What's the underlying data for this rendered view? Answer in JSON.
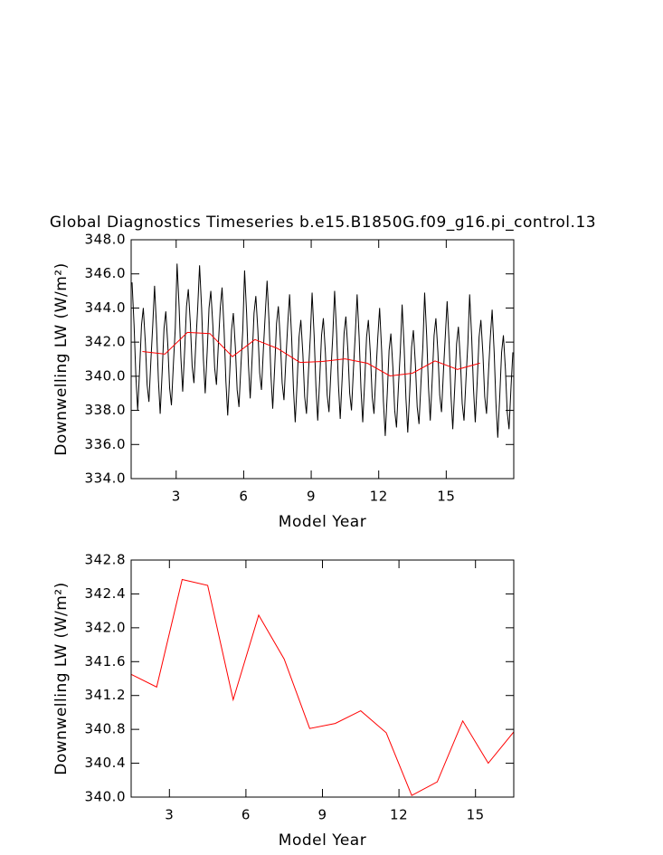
{
  "chart_data": [
    {
      "type": "line",
      "title": "Global Diagnostics Timeseries b.e15.B1850G.f09_g16.pi_control.13",
      "x_label": "Model Year",
      "y_label": "Downwelling LW (W/m²)",
      "xlim": [
        1,
        18
      ],
      "xticks": [
        3,
        6,
        9,
        12,
        15
      ],
      "ylim": [
        334,
        348
      ],
      "yticks": [
        {
          "value": 334,
          "label": "334.0"
        },
        {
          "value": 336,
          "label": "336.0"
        },
        {
          "value": 338,
          "label": "338.0"
        },
        {
          "value": 340,
          "label": "340.0"
        },
        {
          "value": 342,
          "label": "342.0"
        },
        {
          "value": 344,
          "label": "344.0"
        },
        {
          "value": 346,
          "label": "346.0"
        },
        {
          "value": 348,
          "label": "348.0"
        }
      ],
      "series": [
        {
          "color": "#000000",
          "x": [
            1.04,
            1.13,
            1.21,
            1.29,
            1.38,
            1.46,
            1.54,
            1.63,
            1.71,
            1.79,
            1.88,
            1.96,
            2.04,
            2.13,
            2.21,
            2.29,
            2.38,
            2.46,
            2.54,
            2.63,
            2.71,
            2.79,
            2.88,
            2.96,
            3.04,
            3.13,
            3.21,
            3.29,
            3.38,
            3.46,
            3.54,
            3.63,
            3.71,
            3.79,
            3.88,
            3.96,
            4.04,
            4.13,
            4.21,
            4.29,
            4.38,
            4.46,
            4.54,
            4.63,
            4.71,
            4.79,
            4.88,
            4.96,
            5.04,
            5.13,
            5.21,
            5.29,
            5.38,
            5.46,
            5.54,
            5.63,
            5.71,
            5.79,
            5.88,
            5.96,
            6.04,
            6.13,
            6.21,
            6.29,
            6.38,
            6.46,
            6.54,
            6.63,
            6.71,
            6.79,
            6.88,
            6.96,
            7.04,
            7.13,
            7.21,
            7.29,
            7.38,
            7.46,
            7.54,
            7.63,
            7.71,
            7.79,
            7.88,
            7.96,
            8.04,
            8.13,
            8.21,
            8.29,
            8.38,
            8.46,
            8.54,
            8.63,
            8.71,
            8.79,
            8.88,
            8.96,
            9.04,
            9.13,
            9.21,
            9.29,
            9.38,
            9.46,
            9.54,
            9.63,
            9.71,
            9.79,
            9.88,
            9.96,
            10.04,
            10.13,
            10.21,
            10.29,
            10.38,
            10.46,
            10.54,
            10.63,
            10.71,
            10.79,
            10.88,
            10.96,
            11.04,
            11.13,
            11.21,
            11.29,
            11.38,
            11.46,
            11.54,
            11.63,
            11.71,
            11.79,
            11.88,
            11.96,
            12.04,
            12.13,
            12.21,
            12.29,
            12.38,
            12.46,
            12.54,
            12.63,
            12.71,
            12.79,
            12.88,
            12.96,
            13.04,
            13.13,
            13.21,
            13.29,
            13.38,
            13.46,
            13.54,
            13.63,
            13.71,
            13.79,
            13.88,
            13.96,
            14.04,
            14.13,
            14.21,
            14.29,
            14.38,
            14.46,
            14.54,
            14.63,
            14.71,
            14.79,
            14.88,
            14.96,
            15.04,
            15.13,
            15.21,
            15.29,
            15.38,
            15.46,
            15.54,
            15.63,
            15.71,
            15.79,
            15.88,
            15.96,
            16.04,
            16.13,
            16.21,
            16.29,
            16.38,
            16.46,
            16.54,
            16.63,
            16.71,
            16.79,
            16.88,
            16.96,
            17.04,
            17.13,
            17.21,
            17.29,
            17.38,
            17.46,
            17.54,
            17.63,
            17.71,
            17.79,
            17.88,
            17.96
          ],
          "values": [
            345.5,
            343.0,
            340.0,
            338.0,
            340.5,
            343.0,
            344.0,
            342.0,
            339.5,
            338.5,
            341.0,
            343.0,
            345.3,
            342.8,
            339.8,
            337.8,
            340.3,
            342.8,
            343.8,
            341.8,
            339.3,
            338.3,
            340.8,
            342.8,
            346.6,
            344.1,
            341.1,
            339.1,
            341.6,
            344.1,
            345.1,
            343.1,
            340.6,
            339.6,
            342.1,
            344.1,
            346.5,
            344.0,
            341.0,
            339.0,
            341.5,
            344.0,
            345.0,
            343.0,
            340.5,
            339.5,
            342.0,
            344.0,
            345.2,
            342.7,
            339.7,
            337.7,
            340.2,
            342.7,
            343.7,
            341.7,
            339.2,
            338.2,
            340.7,
            342.7,
            346.2,
            343.7,
            340.7,
            338.7,
            341.2,
            343.7,
            344.7,
            342.7,
            340.2,
            339.2,
            341.7,
            343.7,
            345.6,
            343.1,
            340.1,
            338.1,
            340.6,
            343.1,
            344.1,
            342.1,
            339.6,
            338.6,
            341.1,
            343.1,
            344.8,
            342.3,
            339.3,
            337.3,
            339.8,
            342.3,
            343.3,
            341.3,
            338.8,
            337.8,
            340.3,
            342.3,
            344.9,
            342.4,
            339.4,
            337.4,
            339.9,
            342.4,
            343.4,
            341.4,
            338.9,
            337.9,
            340.4,
            342.4,
            345.0,
            342.5,
            339.5,
            337.5,
            340.0,
            342.5,
            343.5,
            341.5,
            339.0,
            338.0,
            340.5,
            342.5,
            344.8,
            342.3,
            339.3,
            337.3,
            339.8,
            342.3,
            343.3,
            341.3,
            338.8,
            337.8,
            340.3,
            342.3,
            344.0,
            341.5,
            338.5,
            336.5,
            339.0,
            341.5,
            342.5,
            340.5,
            338.0,
            337.0,
            339.5,
            341.5,
            344.2,
            341.7,
            338.7,
            336.7,
            339.2,
            341.7,
            342.7,
            340.7,
            338.2,
            337.2,
            339.7,
            341.7,
            344.9,
            342.4,
            339.4,
            337.4,
            339.9,
            342.4,
            343.4,
            341.4,
            338.9,
            337.9,
            340.4,
            342.4,
            344.4,
            341.9,
            338.9,
            336.9,
            339.4,
            341.9,
            342.9,
            340.9,
            338.4,
            337.4,
            339.9,
            341.9,
            344.8,
            342.3,
            339.3,
            337.3,
            339.8,
            342.3,
            343.3,
            341.3,
            338.8,
            337.8,
            340.3,
            342.3,
            343.9,
            341.4,
            338.4,
            336.4,
            338.9,
            341.4,
            342.4,
            340.4,
            337.9,
            336.9,
            339.4,
            341.4
          ]
        },
        {
          "color": "#ff0000",
          "x": [
            1.5,
            2.5,
            3.5,
            4.5,
            5.5,
            6.5,
            7.5,
            8.5,
            9.5,
            10.5,
            11.5,
            12.5,
            13.5,
            14.5,
            15.5,
            16.5
          ],
          "values": [
            341.45,
            341.3,
            342.57,
            342.5,
            341.15,
            342.15,
            341.63,
            340.81,
            340.87,
            341.02,
            340.76,
            340.02,
            340.18,
            340.9,
            340.4,
            340.77
          ]
        }
      ]
    },
    {
      "type": "line",
      "x_label": "Model Year",
      "y_label": "Downwelling LW (W/m²)",
      "xlim": [
        1.5,
        16.5
      ],
      "xticks": [
        3,
        6,
        9,
        12,
        15
      ],
      "ylim": [
        340,
        342.8
      ],
      "yticks": [
        {
          "value": 340,
          "label": "340.0"
        },
        340.4,
        340.8,
        341.2,
        341.6,
        {
          "value": 342,
          "label": "342.0"
        },
        342.4,
        342.8
      ],
      "series": [
        {
          "color": "#ff0000",
          "x": [
            1.5,
            2.5,
            3.5,
            4.5,
            5.5,
            6.5,
            7.5,
            8.5,
            9.5,
            10.5,
            11.5,
            12.5,
            13.5,
            14.5,
            15.5,
            16.5
          ],
          "values": [
            341.45,
            341.3,
            342.57,
            342.5,
            341.15,
            342.15,
            341.63,
            340.81,
            340.87,
            341.02,
            340.76,
            340.02,
            340.18,
            340.9,
            340.4,
            340.77
          ]
        }
      ]
    }
  ]
}
